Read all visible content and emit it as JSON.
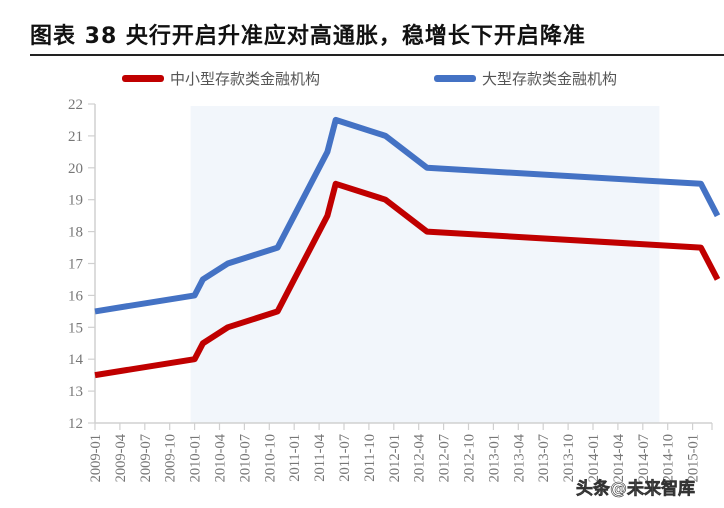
{
  "header": {
    "title": "图表 38  央行开启升准应对高通胀，稳增长下开启降准"
  },
  "legend": [
    {
      "label": "中小型存款类金融机构",
      "color": "#C00000"
    },
    {
      "label": "大型存款类金融机构",
      "color": "#4472C4"
    }
  ],
  "watermark": "头条@未来智库",
  "chart_data": {
    "type": "line",
    "title": "央行开启升准应对高通胀，稳增长下开启降准",
    "xlabel": "",
    "ylabel": "",
    "ylim": [
      12,
      22
    ],
    "yticks": [
      12,
      13,
      14,
      15,
      16,
      17,
      18,
      19,
      20,
      21,
      22
    ],
    "xticks": [
      "2009-01",
      "2009-04",
      "2009-07",
      "2009-10",
      "2010-01",
      "2010-04",
      "2010-07",
      "2010-10",
      "2011-01",
      "2011-04",
      "2011-07",
      "2011-10",
      "2012-01",
      "2012-04",
      "2012-07",
      "2012-10",
      "2013-01",
      "2013-04",
      "2013-07",
      "2013-10",
      "2014-01",
      "2014-04",
      "2014-07",
      "2014-10",
      "2015-01"
    ],
    "grid": false,
    "legend_position": "top",
    "shaded_region": {
      "from": "2010-01",
      "to": "2014-09",
      "color": "#F2F6FB"
    },
    "series": [
      {
        "name": "中小型存款类金融机构",
        "color": "#C00000",
        "points": [
          {
            "x": "2009-01",
            "y": 13.5
          },
          {
            "x": "2010-01",
            "y": 14.0
          },
          {
            "x": "2010-02",
            "y": 14.5
          },
          {
            "x": "2010-05",
            "y": 15.0
          },
          {
            "x": "2010-11",
            "y": 15.5
          },
          {
            "x": "2010-12",
            "y": 16.0
          },
          {
            "x": "2011-01",
            "y": 16.5
          },
          {
            "x": "2011-03",
            "y": 17.5
          },
          {
            "x": "2011-05",
            "y": 18.5
          },
          {
            "x": "2011-06",
            "y": 19.5
          },
          {
            "x": "2011-12",
            "y": 19.0
          },
          {
            "x": "2012-05",
            "y": 18.0
          },
          {
            "x": "2015-02",
            "y": 17.5
          },
          {
            "x": "2015-04",
            "y": 16.5
          }
        ]
      },
      {
        "name": "大型存款类金融机构",
        "color": "#4472C4",
        "points": [
          {
            "x": "2009-01",
            "y": 15.5
          },
          {
            "x": "2010-01",
            "y": 16.0
          },
          {
            "x": "2010-02",
            "y": 16.5
          },
          {
            "x": "2010-05",
            "y": 17.0
          },
          {
            "x": "2010-11",
            "y": 17.5
          },
          {
            "x": "2010-12",
            "y": 18.0
          },
          {
            "x": "2011-01",
            "y": 18.5
          },
          {
            "x": "2011-03",
            "y": 19.5
          },
          {
            "x": "2011-05",
            "y": 20.5
          },
          {
            "x": "2011-06",
            "y": 21.5
          },
          {
            "x": "2011-12",
            "y": 21.0
          },
          {
            "x": "2012-05",
            "y": 20.0
          },
          {
            "x": "2015-02",
            "y": 19.5
          },
          {
            "x": "2015-04",
            "y": 18.5
          }
        ]
      }
    ]
  }
}
